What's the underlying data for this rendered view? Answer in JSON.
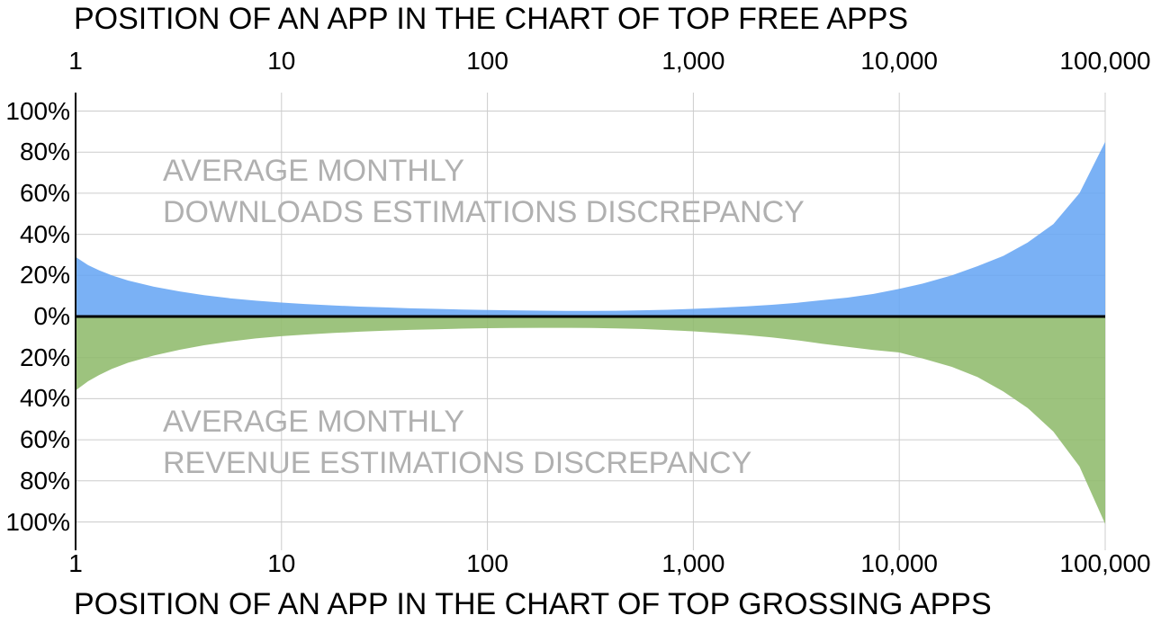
{
  "chart_data": {
    "type": "area",
    "subtype": "mirrored-log-x-areas",
    "grid": true,
    "legend": "none",
    "x_axis": {
      "scale": "log",
      "range": [
        1,
        100000
      ],
      "top_label": "POSITION OF AN APP IN THE CHART OF TOP FREE APPS",
      "bottom_label": "POSITION OF AN APP IN THE CHART OF TOP GROSSING APPS",
      "tick_labels": [
        "1",
        "10",
        "100",
        "1,000",
        "10,000",
        "100,000"
      ],
      "tick_values": [
        1,
        10,
        100,
        1000,
        10000,
        100000
      ]
    },
    "y_axis": {
      "unit": "%",
      "range": [
        -100,
        100
      ],
      "tick_labels": [
        "100%",
        "80%",
        "60%",
        "40%",
        "20%",
        "0%",
        "20%",
        "40%",
        "60%",
        "80%",
        "100%"
      ],
      "tick_values": [
        100,
        80,
        60,
        40,
        20,
        0,
        -20,
        -40,
        -60,
        -80,
        -100
      ]
    },
    "series": [
      {
        "name": "Average monthly downloads estimations discrepancy",
        "label_lines": [
          "AVERAGE MONTHLY",
          "DOWNLOADS ESTIMATIONS DISCREPANCY"
        ],
        "orientation": "above-zero",
        "color": "#7ab1f5",
        "x": [
          1,
          1.15,
          1.3,
          1.5,
          1.8,
          2.4,
          3.2,
          4.2,
          5.6,
          7.5,
          10,
          13,
          18,
          24,
          32,
          42,
          56,
          75,
          100,
          130,
          180,
          240,
          320,
          420,
          560,
          750,
          1000,
          1300,
          1800,
          2400,
          3200,
          4200,
          5600,
          7500,
          10000,
          13000,
          18000,
          24000,
          32000,
          42000,
          56000,
          75000,
          100000
        ],
        "values_pct": [
          29,
          25,
          22.5,
          20,
          17.5,
          14.5,
          12.2,
          10.4,
          8.9,
          7.7,
          6.8,
          6.1,
          5.4,
          4.8,
          4.4,
          4.0,
          3.7,
          3.4,
          3.2,
          3.0,
          2.85,
          2.75,
          2.75,
          2.8,
          3.0,
          3.3,
          3.7,
          4.2,
          4.9,
          5.7,
          6.7,
          7.9,
          9.2,
          11,
          13.5,
          16,
          20,
          24.5,
          29.5,
          36,
          45,
          60,
          85
        ]
      },
      {
        "name": "Average monthly revenue estimations discrepancy",
        "label_lines": [
          "AVERAGE MONTHLY",
          "REVENUE ESTIMATIONS DISCREPANCY"
        ],
        "orientation": "below-zero",
        "color": "#9cc37e",
        "x": [
          1,
          1.15,
          1.3,
          1.5,
          1.8,
          2.4,
          3.2,
          4.2,
          5.6,
          7.5,
          10,
          13,
          18,
          24,
          32,
          42,
          56,
          75,
          100,
          130,
          180,
          240,
          320,
          420,
          560,
          750,
          1000,
          1300,
          1800,
          2400,
          3200,
          4200,
          5600,
          7500,
          10000,
          13000,
          18000,
          24000,
          32000,
          42000,
          56000,
          75000,
          100000
        ],
        "values_pct": [
          36,
          31.5,
          28.5,
          25.5,
          22.5,
          19,
          16.2,
          14,
          12.2,
          10.7,
          9.6,
          8.8,
          8.0,
          7.4,
          6.9,
          6.5,
          6.2,
          5.9,
          5.7,
          5.6,
          5.5,
          5.5,
          5.6,
          5.8,
          6.1,
          6.6,
          7.2,
          8.0,
          9.0,
          10.2,
          11.6,
          13.2,
          14.8,
          16.3,
          17.5,
          20.5,
          24.5,
          29.5,
          36.5,
          44.5,
          56,
          73,
          101
        ]
      }
    ],
    "colors": {
      "downloads_area": "#7ab1f5",
      "revenue_area": "#9cc37e",
      "gridline": "#cccccc",
      "zero_line": "#000000",
      "axis_line": "#000000",
      "series_label": "#b0b0b0",
      "text": "#000000",
      "background": "#ffffff"
    }
  }
}
